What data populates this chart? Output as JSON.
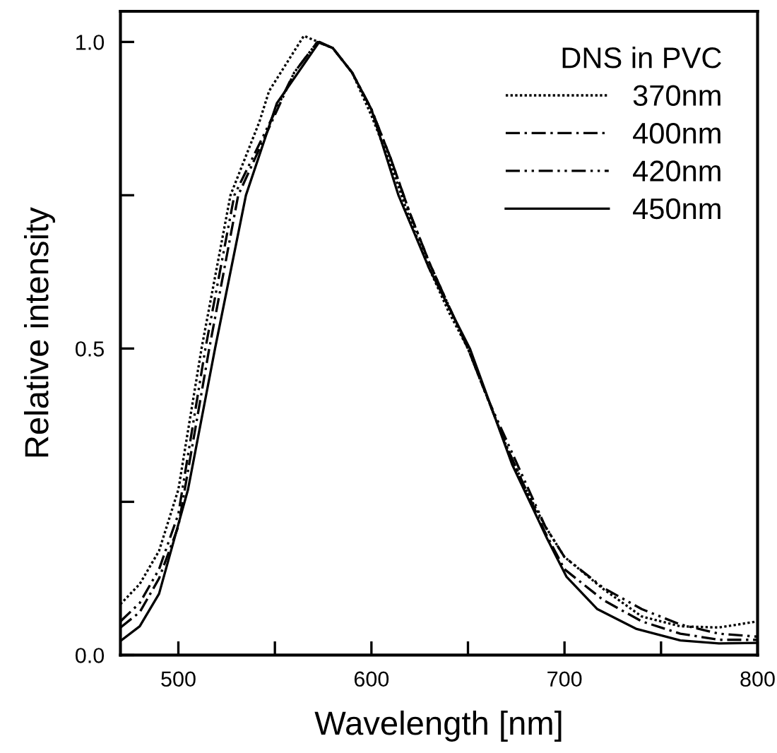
{
  "chart_data": {
    "type": "line",
    "xlabel": "Wavelength [nm]",
    "ylabel": "Relative intensity",
    "legend_title": "DNS in PVC",
    "legend": "top right",
    "grid": false,
    "marker": "none",
    "xlim": [
      470,
      800
    ],
    "ylim": [
      0,
      1.05
    ],
    "xticks": [
      500,
      {
        "value": 550,
        "label": null
      },
      600,
      {
        "value": 650,
        "label": null
      },
      700,
      {
        "value": 750,
        "label": null
      },
      800
    ],
    "yticks": [
      {
        "value": 0,
        "label": "0.0"
      },
      {
        "value": 0.25,
        "label": null
      },
      {
        "value": 0.5,
        "label": "0.5"
      },
      {
        "value": 0.75,
        "label": null
      },
      {
        "value": 1,
        "label": "1.0"
      }
    ],
    "series": [
      {
        "name": "370nm",
        "color": "#000000",
        "line_style": "dotted",
        "x": [
          470,
          480,
          490,
          500,
          512,
          527,
          542,
          547,
          565,
          580,
          590,
          600,
          610,
          620,
          630,
          640,
          650,
          660,
          670,
          680,
          690,
          700,
          720,
          740,
          760,
          780,
          800
        ],
        "values": [
          0.083,
          0.116,
          0.17,
          0.27,
          0.5,
          0.75,
          0.87,
          0.92,
          1.01,
          0.99,
          0.95,
          0.88,
          0.8,
          0.71,
          0.63,
          0.56,
          0.5,
          0.42,
          0.34,
          0.27,
          0.21,
          0.16,
          0.108,
          0.063,
          0.047,
          0.045,
          0.055
        ]
      },
      {
        "name": "400nm",
        "color": "#000000",
        "line_style": "dashdot",
        "x": [
          470,
          480,
          490,
          500,
          516,
          531,
          560,
          572,
          580,
          590,
          600,
          610,
          620,
          630,
          640,
          650,
          660,
          670,
          680,
          690,
          700,
          720,
          740,
          760,
          780,
          800
        ],
        "values": [
          0.045,
          0.07,
          0.125,
          0.21,
          0.5,
          0.75,
          0.95,
          1.0,
          0.99,
          0.95,
          0.89,
          0.81,
          0.72,
          0.64,
          0.57,
          0.5,
          0.42,
          0.34,
          0.27,
          0.2,
          0.14,
          0.09,
          0.055,
          0.035,
          0.025,
          0.025
        ]
      },
      {
        "name": "420nm",
        "color": "#000000",
        "line_style": "dashdotdot",
        "x": [
          470,
          480,
          490,
          500,
          514,
          529,
          560,
          572,
          580,
          590,
          600,
          610,
          620,
          630,
          640,
          650,
          660,
          670,
          680,
          690,
          700,
          720,
          740,
          760,
          780,
          800
        ],
        "values": [
          0.055,
          0.085,
          0.14,
          0.23,
          0.5,
          0.75,
          0.95,
          1.0,
          0.99,
          0.95,
          0.89,
          0.81,
          0.72,
          0.64,
          0.57,
          0.5,
          0.42,
          0.35,
          0.28,
          0.21,
          0.16,
          0.11,
          0.075,
          0.05,
          0.035,
          0.03
        ]
      },
      {
        "name": "450nm",
        "color": "#000000",
        "line_style": "solid",
        "x": [
          470,
          480,
          490,
          505,
          519,
          535,
          551,
          573,
          580,
          590,
          600,
          614,
          630,
          651,
          673,
          682,
          691,
          701,
          717,
          737,
          760,
          780,
          800
        ],
        "values": [
          0.023,
          0.047,
          0.1,
          0.27,
          0.5,
          0.75,
          0.9,
          1.0,
          0.99,
          0.95,
          0.89,
          0.75,
          0.63,
          0.5,
          0.31,
          0.25,
          0.19,
          0.128,
          0.075,
          0.043,
          0.024,
          0.019,
          0.02
        ]
      }
    ]
  }
}
